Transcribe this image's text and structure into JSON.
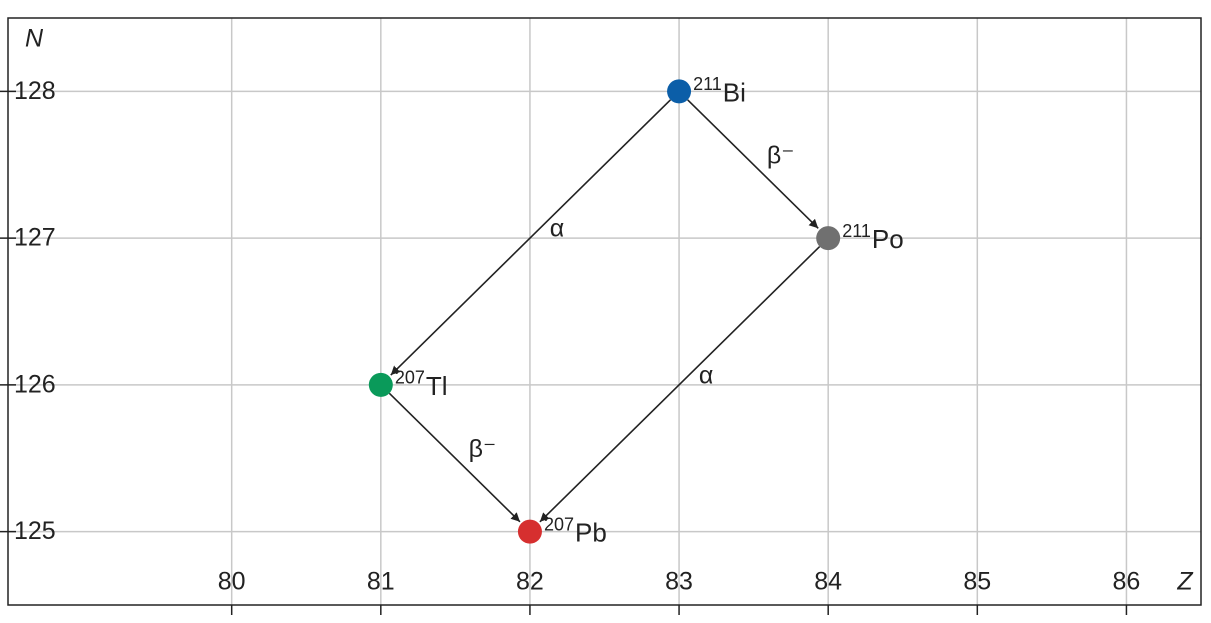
{
  "chart_data": {
    "type": "scatter",
    "x_label": "Z",
    "y_label": "N",
    "xlim": [
      78.5,
      86.5
    ],
    "ylim": [
      124.5,
      128.5
    ],
    "xticks": [
      80,
      81,
      82,
      83,
      84,
      85,
      86
    ],
    "yticks": [
      125,
      126,
      127,
      128
    ],
    "grid": true,
    "series": [
      {
        "name": "Bi",
        "mass": 211,
        "color": "#0b5ea8",
        "x": [
          83
        ],
        "values": [
          128
        ]
      },
      {
        "name": "Po",
        "mass": 211,
        "color": "#707070",
        "x": [
          84
        ],
        "values": [
          127
        ]
      },
      {
        "name": "Tl",
        "mass": 207,
        "color": "#0a9a5a",
        "x": [
          81
        ],
        "values": [
          126
        ]
      },
      {
        "name": "Pb",
        "mass": 207,
        "color": "#d62f2f",
        "x": [
          82
        ],
        "values": [
          125
        ]
      }
    ],
    "decays": [
      {
        "from": "Bi",
        "to": "Po",
        "label": "β⁻"
      },
      {
        "from": "Bi",
        "to": "Tl",
        "label": "α"
      },
      {
        "from": "Po",
        "to": "Pb",
        "label": "α"
      },
      {
        "from": "Tl",
        "to": "Pb",
        "label": "β⁻"
      }
    ]
  }
}
